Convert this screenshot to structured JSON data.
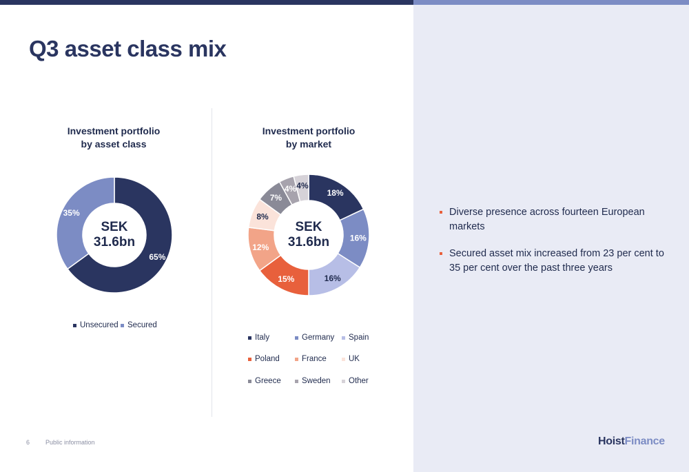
{
  "page": {
    "title": "Q3 asset class mix",
    "page_number": "6",
    "footer_text": "Public information",
    "logo": {
      "part1": "Hoist",
      "part2": "Finance"
    }
  },
  "colors": {
    "navy": "#2a3560",
    "accent_bar": "#7c8cc4",
    "panel": "#e9ebf5",
    "bullet": "#e8603c"
  },
  "bullets": [
    "Diverse presence across fourteen European markets",
    "Secured asset mix increased from 23 per cent to 35 per cent over the past three years"
  ],
  "chart_data": [
    {
      "type": "pie",
      "title_lines": [
        "Investment portfolio",
        "by asset class"
      ],
      "center_label_lines": [
        "SEK",
        "31.6bn"
      ],
      "categories": [
        "Unsecured",
        "Secured"
      ],
      "values": [
        65,
        35
      ],
      "value_labels": [
        "65%",
        "35%"
      ],
      "colors": [
        "#2a3560",
        "#7c8cc4"
      ],
      "label_colors": [
        "#ffffff",
        "#ffffff"
      ],
      "legend": "bottom"
    },
    {
      "type": "pie",
      "title_lines": [
        "Investment portfolio",
        "by market"
      ],
      "center_label_lines": [
        "SEK",
        "31.6bn"
      ],
      "categories": [
        "Italy",
        "Germany",
        "Spain",
        "Poland",
        "France",
        "UK",
        "Greece",
        "Sweden",
        "Other"
      ],
      "values": [
        18,
        16,
        16,
        15,
        12,
        8,
        7,
        4,
        4
      ],
      "value_labels": [
        "18%",
        "16%",
        "16%",
        "15%",
        "12%",
        "8%",
        "7%",
        "4%",
        "4%"
      ],
      "colors": [
        "#2a3560",
        "#7c8cc4",
        "#b7bee6",
        "#e8603c",
        "#f2a488",
        "#fbe3da",
        "#8a8a97",
        "#a7a3ad",
        "#d6d2d8"
      ],
      "label_colors": [
        "#ffffff",
        "#ffffff",
        "#1f2a4d",
        "#ffffff",
        "#ffffff",
        "#1f2a4d",
        "#ffffff",
        "#ffffff",
        "#1f2a4d"
      ],
      "legend": "bottom"
    }
  ]
}
